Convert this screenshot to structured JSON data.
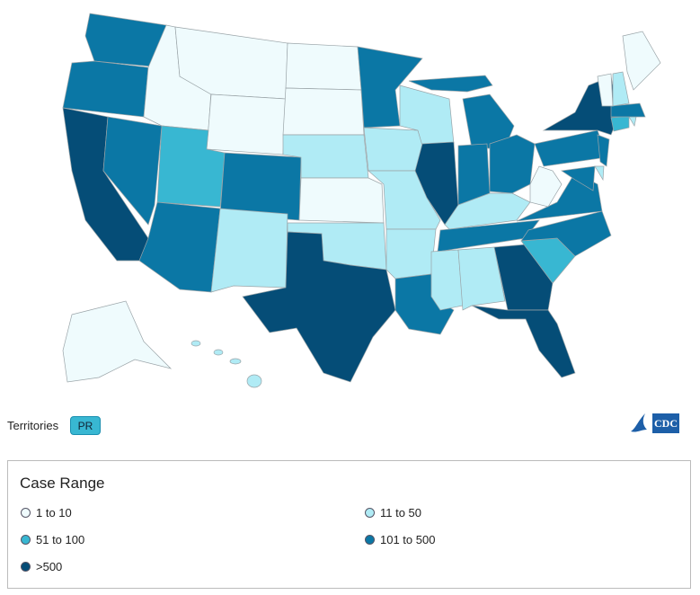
{
  "territories": {
    "label": "Territories",
    "items": [
      "PR"
    ]
  },
  "logo": "CDC",
  "legend": {
    "title": "Case Range",
    "ranges": [
      {
        "label": "1 to 10",
        "color": "#effbfd"
      },
      {
        "label": "11 to 50",
        "color": "#b0ebf5"
      },
      {
        "label": "51 to 100",
        "color": "#38b7d2"
      },
      {
        "label": "101 to 500",
        "color": "#0b77a5"
      },
      {
        "label": ">500",
        "color": "#054d77"
      }
    ]
  }
}
